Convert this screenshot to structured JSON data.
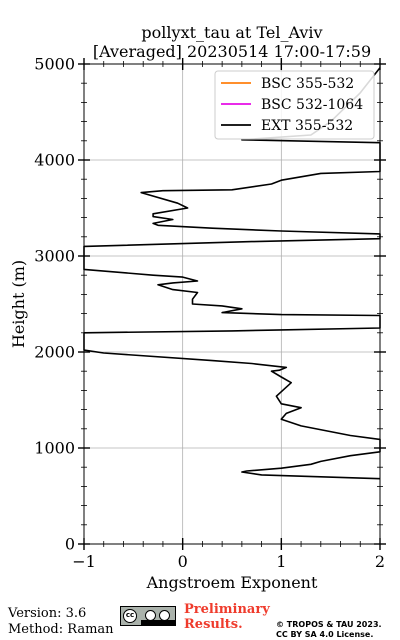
{
  "chart_data": {
    "type": "line",
    "title_line1": "pollyxt_tau at Tel_Aviv",
    "title_line2": "[Averaged] 20230514 17:00-17:59",
    "xlabel": "Angstroem Exponent",
    "ylabel": "Height (m)",
    "xlim": [
      -1,
      2
    ],
    "ylim": [
      0,
      5000
    ],
    "xticks": [
      -1,
      0,
      1,
      2
    ],
    "xtick_labels": [
      "−1",
      "0",
      "1",
      "2"
    ],
    "yticks": [
      0,
      1000,
      2000,
      3000,
      4000,
      5000
    ],
    "ytick_labels": [
      "0",
      "1000",
      "2000",
      "3000",
      "4000",
      "5000"
    ],
    "grid": true,
    "legend_position": "top-right",
    "series": [
      {
        "name": "BSC 355-532",
        "color": "#ff7f0e",
        "x": [],
        "y": []
      },
      {
        "name": "BSC 532-1064",
        "color": "#e60de6",
        "x": [],
        "y": []
      },
      {
        "name": "EXT 355-532",
        "color": "#000000",
        "x": [
          2.0,
          0.8,
          0.6,
          0.65,
          1.0,
          1.3,
          1.4,
          1.7,
          2.0,
          2.0,
          1.7,
          1.2,
          1.0,
          1.05,
          1.2,
          1.0,
          0.95,
          1.1,
          1.0,
          0.9,
          0.98,
          1.05,
          0.7,
          0.3,
          -0.8,
          -1.0,
          -1.0,
          0.5,
          1.0,
          2.0,
          2.0,
          1.0,
          0.4,
          0.6,
          0.4,
          0.1,
          0.1,
          0.15,
          -0.1,
          -0.25,
          -0.1,
          0.15,
          0.0,
          -0.3,
          -1.0,
          -1.0,
          0.7,
          2.0,
          2.0,
          1.0,
          0.3,
          -0.25,
          -0.3,
          -0.1,
          -0.3,
          -0.3,
          0.05,
          -0.05,
          -0.42,
          -0.2,
          0.5,
          0.9,
          1.0,
          1.4,
          2.0,
          2.0,
          0.6,
          1.3,
          1.5,
          1.8,
          2.0
        ],
        "y": [
          680,
          720,
          750,
          760,
          790,
          830,
          860,
          920,
          960,
          1090,
          1130,
          1230,
          1300,
          1360,
          1420,
          1460,
          1540,
          1680,
          1740,
          1800,
          1810,
          1840,
          1880,
          1910,
          1990,
          2020,
          2200,
          2220,
          2230,
          2250,
          2380,
          2390,
          2410,
          2450,
          2480,
          2500,
          2550,
          2620,
          2650,
          2700,
          2720,
          2740,
          2780,
          2800,
          2860,
          3100,
          3150,
          3180,
          3230,
          3260,
          3290,
          3320,
          3340,
          3380,
          3410,
          3440,
          3500,
          3550,
          3660,
          3680,
          3690,
          3750,
          3790,
          3860,
          3880,
          4180,
          4210,
          4260,
          4400,
          4700,
          4960
        ]
      }
    ]
  },
  "footer": {
    "version": "Version: 3.6",
    "method": "Method: Raman",
    "prelim_line1": "Preliminary",
    "prelim_line2": "Results.",
    "copyright_line1": "© TROPOS & TAU 2023.",
    "copyright_line2": "CC BY SA 4.0 License.",
    "cc_logo_text": "cc"
  }
}
